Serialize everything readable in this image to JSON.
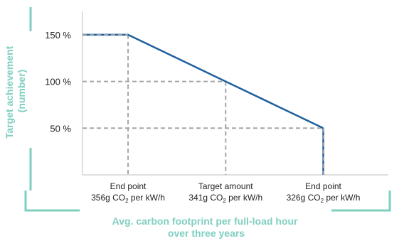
{
  "chart_data": {
    "type": "line",
    "title": "",
    "ylabel": [
      "Target achievement",
      "(number)"
    ],
    "xlabel": [
      "Avg. carbon footprint per full-load hour",
      "over three years"
    ],
    "x_reversed": true,
    "y_ticks": [
      {
        "value": 150,
        "label": "150 %"
      },
      {
        "value": 100,
        "label": "100 %"
      },
      {
        "value": 50,
        "label": "50 %"
      }
    ],
    "x_categories": [
      {
        "value": 356,
        "name": "End point",
        "unit_prefix": "356g CO",
        "unit_sub": "2",
        "unit_suffix": " per kW/h"
      },
      {
        "value": 341,
        "name": "Target amount",
        "unit_prefix": "341g CO",
        "unit_sub": "2",
        "unit_suffix": " per kW/h"
      },
      {
        "value": 326,
        "name": "End point",
        "unit_prefix": "326g CO",
        "unit_sub": "2",
        "unit_suffix": " per kW/h"
      }
    ],
    "series": [
      {
        "points": [
          [
            363,
            150
          ],
          [
            356,
            150
          ],
          [
            341,
            100
          ],
          [
            326,
            50
          ],
          [
            326,
            0
          ]
        ],
        "color": "#1f5f9e",
        "dash_color": "#a6a6a6"
      }
    ],
    "xlim": [
      363,
      316
    ],
    "ylim": [
      0,
      175
    ],
    "grid": false,
    "reference_lines": true,
    "accent_color": "#7fcfc0"
  }
}
